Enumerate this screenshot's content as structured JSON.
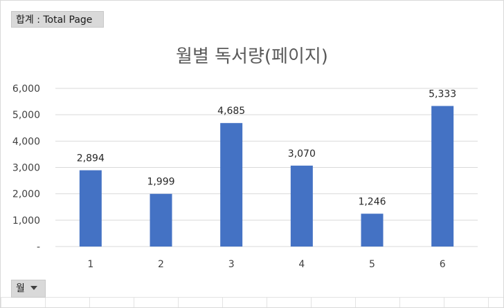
{
  "pivot": {
    "value_field": "합계 : Total Page",
    "axis_field": "월"
  },
  "chart_data": {
    "type": "bar",
    "title": "월별 독서량(페이지)",
    "categories": [
      "1",
      "2",
      "3",
      "4",
      "5",
      "6"
    ],
    "values": [
      2894,
      1999,
      4685,
      3070,
      1246,
      5333
    ],
    "data_labels": [
      "2,894",
      "1,999",
      "4,685",
      "3,070",
      "1,246",
      "5,333"
    ],
    "y_ticks": [
      "-",
      "1,000",
      "2,000",
      "3,000",
      "4,000",
      "5,000",
      "6,000"
    ],
    "ylim": [
      0,
      6000
    ],
    "grid": true,
    "legend": "none",
    "bar_color": "#4472c4",
    "grid_color": "#d9d9d9"
  }
}
